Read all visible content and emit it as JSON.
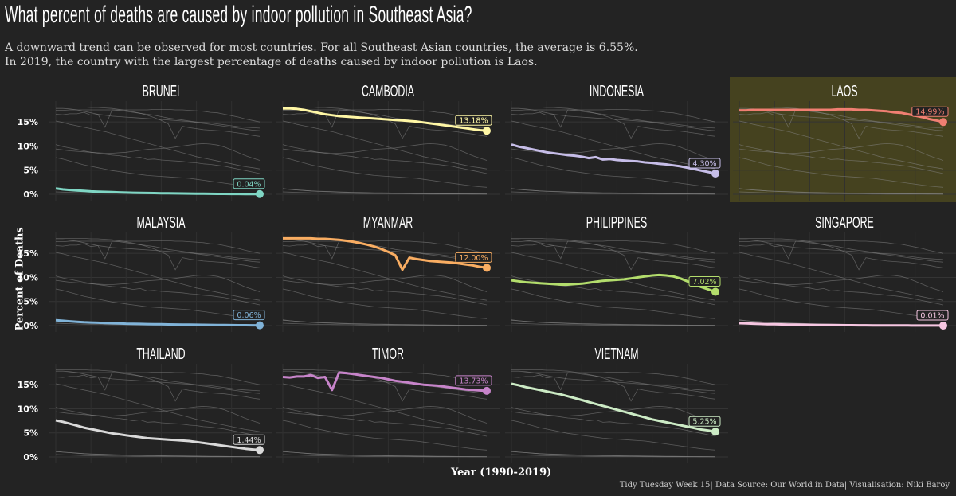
{
  "title": "What percent of deaths are caused by indoor pollution in Southeast Asia?",
  "subtitle_line1": "A downward trend can be observed for most countries. For all Southeast Asian countries, the average is 6.55%.",
  "subtitle_line2": "In 2019, the country with the largest percentage of deaths caused by indoor pollution is Laos.",
  "caption": "Tidy Tuesday Week 15| Data Source: Our World in Data| Visualisation: Niki Baroy",
  "chart_data": {
    "type": "line",
    "facet": "small-multiples",
    "xlabel": "Year (1990-2019)",
    "ylabel": "Percent of Deaths",
    "xlim": [
      1990,
      2019
    ],
    "ylim": [
      0,
      18
    ],
    "yticks": [
      "0%",
      "5%",
      "10%",
      "15%"
    ],
    "grid": true,
    "highlight": "Laos",
    "x": [
      1990,
      1991,
      1992,
      1993,
      1994,
      1995,
      1996,
      1997,
      1998,
      1999,
      2000,
      2001,
      2002,
      2003,
      2004,
      2005,
      2006,
      2007,
      2008,
      2009,
      2010,
      2011,
      2012,
      2013,
      2014,
      2015,
      2016,
      2017,
      2018,
      2019
    ],
    "series": [
      {
        "name": "Brunei",
        "color": "#7fd6c4",
        "end_label": "0.04%",
        "values": [
          1.2,
          1.0,
          0.9,
          0.8,
          0.7,
          0.6,
          0.55,
          0.5,
          0.45,
          0.4,
          0.35,
          0.32,
          0.3,
          0.27,
          0.25,
          0.22,
          0.2,
          0.18,
          0.16,
          0.15,
          0.13,
          0.12,
          0.1,
          0.09,
          0.08,
          0.07,
          0.06,
          0.05,
          0.05,
          0.04
        ]
      },
      {
        "name": "Cambodia",
        "color": "#fff7a5",
        "end_label": "13.18%",
        "values": [
          17.8,
          17.8,
          17.7,
          17.5,
          17.2,
          16.9,
          16.6,
          16.4,
          16.2,
          16.1,
          16.0,
          15.9,
          15.8,
          15.7,
          15.6,
          15.5,
          15.4,
          15.3,
          15.2,
          15.1,
          14.9,
          14.7,
          14.5,
          14.3,
          14.1,
          13.9,
          13.7,
          13.5,
          13.3,
          13.18
        ]
      },
      {
        "name": "Indonesia",
        "color": "#c6bde8",
        "end_label": "4.30%",
        "values": [
          10.3,
          9.9,
          9.6,
          9.3,
          9.0,
          8.7,
          8.5,
          8.3,
          8.1,
          8.0,
          7.8,
          7.5,
          7.7,
          7.2,
          7.3,
          7.1,
          7.0,
          6.9,
          6.8,
          6.6,
          6.5,
          6.3,
          6.2,
          6.0,
          5.8,
          5.5,
          5.2,
          4.9,
          4.6,
          4.3
        ]
      },
      {
        "name": "Laos",
        "color": "#f07f72",
        "end_label": "14.99%",
        "values": [
          17.4,
          17.4,
          17.5,
          17.5,
          17.5,
          17.5,
          17.5,
          17.5,
          17.5,
          17.5,
          17.5,
          17.5,
          17.5,
          17.5,
          17.6,
          17.6,
          17.6,
          17.5,
          17.5,
          17.4,
          17.3,
          17.2,
          17.0,
          16.9,
          16.6,
          16.3,
          16.0,
          15.6,
          15.3,
          14.99
        ]
      },
      {
        "name": "Malaysia",
        "color": "#80b3d8",
        "end_label": "0.06%",
        "values": [
          1.1,
          1.0,
          0.9,
          0.8,
          0.7,
          0.65,
          0.6,
          0.55,
          0.5,
          0.45,
          0.4,
          0.38,
          0.35,
          0.32,
          0.3,
          0.28,
          0.25,
          0.23,
          0.21,
          0.2,
          0.18,
          0.16,
          0.15,
          0.13,
          0.12,
          0.1,
          0.09,
          0.08,
          0.07,
          0.06
        ]
      },
      {
        "name": "Myanmar",
        "color": "#f9ad62",
        "end_label": "12.00%",
        "values": [
          18.1,
          18.1,
          18.1,
          18.1,
          18.1,
          18.0,
          18.0,
          17.9,
          17.8,
          17.6,
          17.4,
          17.1,
          16.8,
          16.4,
          15.9,
          15.3,
          14.6,
          11.6,
          14.1,
          13.8,
          13.6,
          13.4,
          13.3,
          13.2,
          13.1,
          12.9,
          12.7,
          12.5,
          12.2,
          12.0
        ]
      },
      {
        "name": "Philippines",
        "color": "#b3dd6c",
        "end_label": "7.02%",
        "values": [
          9.4,
          9.2,
          9.0,
          8.9,
          8.8,
          8.7,
          8.6,
          8.5,
          8.5,
          8.6,
          8.7,
          8.9,
          9.1,
          9.3,
          9.4,
          9.5,
          9.6,
          9.8,
          10.0,
          10.2,
          10.4,
          10.5,
          10.4,
          10.2,
          9.8,
          9.2,
          8.6,
          8.0,
          7.5,
          7.02
        ]
      },
      {
        "name": "Singapore",
        "color": "#f6c6e1",
        "end_label": "0.01%",
        "values": [
          0.5,
          0.45,
          0.4,
          0.35,
          0.3,
          0.28,
          0.25,
          0.22,
          0.2,
          0.18,
          0.16,
          0.14,
          0.12,
          0.11,
          0.1,
          0.09,
          0.08,
          0.07,
          0.06,
          0.05,
          0.05,
          0.04,
          0.04,
          0.03,
          0.03,
          0.02,
          0.02,
          0.02,
          0.01,
          0.01
        ]
      },
      {
        "name": "Thailand",
        "color": "#d9d9d9",
        "end_label": "1.44%",
        "values": [
          7.6,
          7.3,
          6.9,
          6.5,
          6.1,
          5.8,
          5.5,
          5.2,
          4.9,
          4.7,
          4.5,
          4.3,
          4.1,
          3.9,
          3.8,
          3.7,
          3.6,
          3.5,
          3.4,
          3.3,
          3.1,
          2.9,
          2.7,
          2.5,
          2.3,
          2.1,
          1.9,
          1.7,
          1.55,
          1.44
        ]
      },
      {
        "name": "Timor",
        "color": "#c784ca",
        "end_label": "13.73%",
        "values": [
          16.6,
          16.5,
          16.7,
          16.7,
          17.0,
          16.4,
          16.6,
          13.9,
          17.5,
          17.4,
          17.2,
          17.0,
          16.8,
          16.6,
          16.4,
          16.1,
          15.8,
          15.6,
          15.4,
          15.2,
          15.0,
          14.9,
          14.8,
          14.6,
          14.4,
          14.2,
          14.0,
          13.9,
          13.8,
          13.73
        ]
      },
      {
        "name": "Vietnam",
        "color": "#ccebc5",
        "end_label": "5.25%",
        "values": [
          15.2,
          14.9,
          14.5,
          14.2,
          13.9,
          13.6,
          13.3,
          13.0,
          12.6,
          12.2,
          11.8,
          11.4,
          11.0,
          10.6,
          10.2,
          9.8,
          9.4,
          9.0,
          8.6,
          8.2,
          7.8,
          7.5,
          7.2,
          6.9,
          6.6,
          6.3,
          6.0,
          5.7,
          5.5,
          5.25
        ]
      }
    ]
  }
}
